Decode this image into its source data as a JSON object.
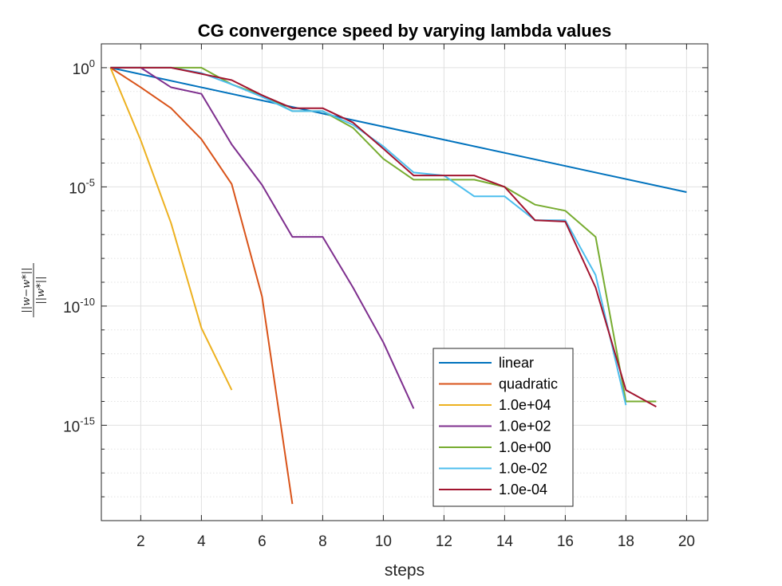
{
  "chart_data": {
    "type": "line",
    "title": "CG convergence speed by varying lambda values",
    "xlabel": "steps",
    "ylabel": {
      "numerator_norm": "||w−w*||",
      "denominator_norm": "||w*||"
    },
    "yscale": "log",
    "xlim": [
      0.7,
      20.7
    ],
    "ylim": [
      1e-19,
      10
    ],
    "xticks": [
      2,
      4,
      6,
      8,
      10,
      12,
      14,
      16,
      18,
      20
    ],
    "xtick_labels": [
      "2",
      "4",
      "6",
      "8",
      "10",
      "12",
      "14",
      "16",
      "18",
      "20"
    ],
    "yticks": [
      {
        "value": 1,
        "base": "10",
        "exp": "0"
      },
      {
        "value": 1e-05,
        "base": "10",
        "exp": "-5"
      },
      {
        "value": 1e-10,
        "base": "10",
        "exp": "-10"
      },
      {
        "value": 1e-15,
        "base": "10",
        "exp": "-15"
      }
    ],
    "grid": true,
    "minor_grid": true,
    "legend_position": "bottom-center",
    "series": [
      {
        "name": "linear",
        "color": "#0072BD",
        "x": [
          1,
          20
        ],
        "y": [
          1,
          6e-06
        ]
      },
      {
        "name": "quadratic",
        "color": "#D95319",
        "x": [
          1,
          2,
          3,
          4,
          5,
          6,
          7
        ],
        "y": [
          1,
          0.15,
          0.02,
          0.001,
          1.3e-05,
          2.5e-10,
          5e-19
        ]
      },
      {
        "name": "1.0e+04",
        "color": "#EDB120",
        "x": [
          1,
          2,
          3,
          4,
          5
        ],
        "y": [
          1,
          0.0009,
          3e-07,
          1.2e-11,
          3e-14
        ]
      },
      {
        "name": "1.0e+02",
        "color": "#7E2F8E",
        "x": [
          1,
          2,
          3,
          4,
          5,
          6,
          7,
          8,
          9,
          10,
          11
        ],
        "y": [
          1,
          1,
          0.15,
          0.08,
          0.0006,
          1.2e-05,
          8e-08,
          8e-08,
          6e-10,
          3e-12,
          5e-15
        ]
      },
      {
        "name": "1.0e+00",
        "color": "#77AC30",
        "x": [
          1,
          2,
          3,
          4,
          5,
          6,
          7,
          8,
          9,
          10,
          11,
          12,
          13,
          14,
          15,
          16,
          17,
          18,
          19
        ],
        "y": [
          1,
          1,
          1,
          1,
          0.2,
          0.07,
          0.015,
          0.015,
          0.003,
          0.00015,
          2e-05,
          2e-05,
          2e-05,
          1e-05,
          1.8e-06,
          1e-06,
          8e-08,
          1e-14,
          1e-14
        ]
      },
      {
        "name": "1.0e-02",
        "color": "#4DBEEE",
        "x": [
          1,
          2,
          3,
          4,
          5,
          6,
          7,
          8,
          9,
          10,
          11,
          12,
          13,
          14,
          15,
          16,
          17,
          18
        ],
        "y": [
          1,
          1,
          1,
          0.6,
          0.2,
          0.06,
          0.015,
          0.015,
          0.004,
          0.0005,
          4e-05,
          3e-05,
          4e-06,
          4e-06,
          4e-07,
          4e-07,
          2e-09,
          7e-15
        ]
      },
      {
        "name": "1.0e-04",
        "color": "#A2142F",
        "x": [
          1,
          2,
          3,
          4,
          5,
          6,
          7,
          8,
          9,
          10,
          11,
          12,
          13,
          14,
          15,
          16,
          17,
          18,
          19
        ],
        "y": [
          1,
          1,
          1,
          0.55,
          0.3,
          0.07,
          0.02,
          0.02,
          0.005,
          0.0004,
          3e-05,
          3e-05,
          3e-05,
          1e-05,
          4e-07,
          3.5e-07,
          6e-10,
          3e-14,
          6e-15
        ]
      }
    ]
  }
}
